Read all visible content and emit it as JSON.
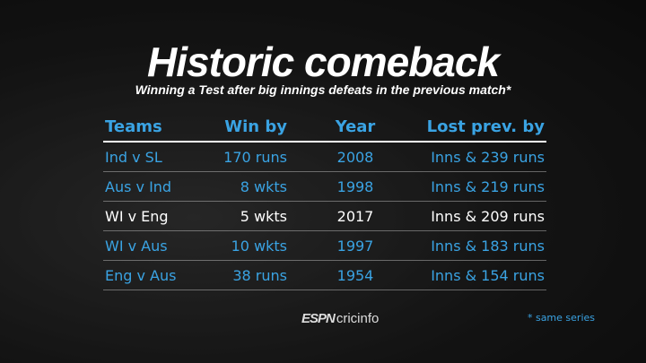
{
  "header": {
    "title": "Historic comeback",
    "subtitle": "Winning a Test after big innings defeats in the previous match*"
  },
  "table": {
    "columns": [
      "Teams",
      "Win by",
      "Year",
      "Lost prev. by"
    ],
    "rows": [
      [
        "Ind v SL",
        "170 runs",
        "2008",
        "Inns & 239 runs"
      ],
      [
        "Aus v Ind",
        "8 wkts",
        "1998",
        "Inns & 219 runs"
      ],
      [
        "WI v Eng",
        "5 wkts",
        "2017",
        "Inns & 209 runs"
      ],
      [
        "WI v Aus",
        "10 wkts",
        "1997",
        "Inns & 183 runs"
      ],
      [
        "Eng v Aus",
        "38 runs",
        "1954",
        "Inns & 154 runs"
      ]
    ]
  },
  "footer": {
    "brand_prefix": "ESPN",
    "brand": "cricinfo",
    "note": "* same series"
  }
}
